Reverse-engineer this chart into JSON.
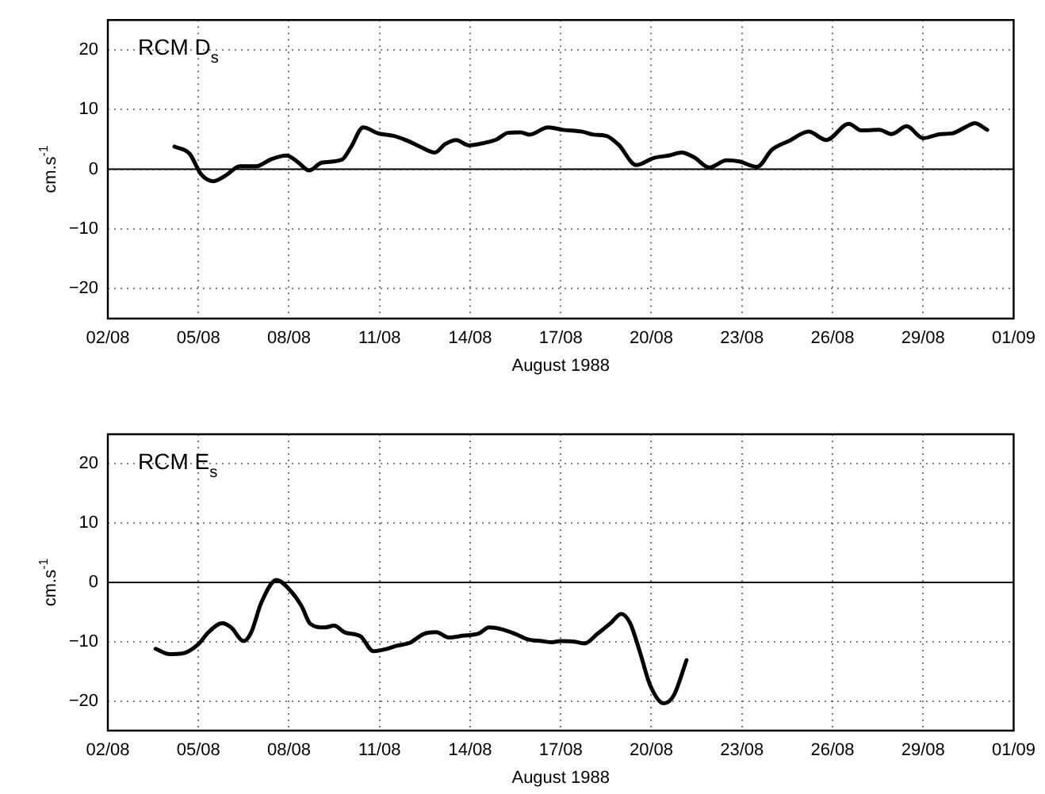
{
  "chart_data": [
    {
      "type": "line",
      "title": "RCM D$_{s}$",
      "xlabel": "August 1988",
      "ylabel": "cm.s$^{-1}$",
      "grid": true,
      "marker": "none",
      "line_style": "solid",
      "xlim": [
        "1988-08-02",
        "1988-09-01"
      ],
      "xticks": [
        {
          "value": "1988-08-02",
          "label": "02/08"
        },
        {
          "value": "1988-08-05",
          "label": "05/08"
        },
        {
          "value": "1988-08-08",
          "label": "08/08"
        },
        {
          "value": "1988-08-11",
          "label": "11/08"
        },
        {
          "value": "1988-08-14",
          "label": "14/08"
        },
        {
          "value": "1988-08-17",
          "label": "17/08"
        },
        {
          "value": "1988-08-20",
          "label": "20/08"
        },
        {
          "value": "1988-08-23",
          "label": "23/08"
        },
        {
          "value": "1988-08-26",
          "label": "26/08"
        },
        {
          "value": "1988-08-29",
          "label": "29/08"
        },
        {
          "value": "1988-09-01",
          "label": "01/09"
        }
      ],
      "ylim": [
        -25,
        25
      ],
      "yticks": [
        -20,
        -10,
        0,
        10,
        20
      ],
      "ref_lines": [
        {
          "axis": "y",
          "value": 0,
          "color": "#000000"
        }
      ],
      "series": [
        {
          "color": "#000000",
          "x": [
            "1988-08-04T05:00",
            "1988-08-04T17:00",
            "1988-08-05T02:00",
            "1988-08-05T12:00",
            "1988-08-05T22:00",
            "1988-08-06T09:00",
            "1988-08-06T22:00",
            "1988-08-07T10:00",
            "1988-08-07T22:00",
            "1988-08-08T07:00",
            "1988-08-08T16:00",
            "1988-08-09T02:00",
            "1988-08-09T18:00",
            "1988-08-10T01:00",
            "1988-08-10T11:00",
            "1988-08-10T23:00",
            "1988-08-11T11:00",
            "1988-08-11T23:00",
            "1988-08-12T08:00",
            "1988-08-12T20:00",
            "1988-08-13T04:00",
            "1988-08-13T13:00",
            "1988-08-13T23:00",
            "1988-08-14T11:00",
            "1988-08-14T21:00",
            "1988-08-15T06:00",
            "1988-08-15T16:00",
            "1988-08-15T23:00",
            "1988-08-16T14:00",
            "1988-08-17T02:00",
            "1988-08-17T17:00",
            "1988-08-18T02:00",
            "1988-08-18T12:00",
            "1988-08-18T22:00",
            "1988-08-19T12:00",
            "1988-08-20T02:00",
            "1988-08-20T14:00",
            "1988-08-21T00:00",
            "1988-08-21T10:00",
            "1988-08-21T22:00",
            "1988-08-22T12:00",
            "1988-08-22T22:00",
            "1988-08-23T12:00",
            "1988-08-24T00:00",
            "1988-08-24T14:00",
            "1988-08-25T05:00",
            "1988-08-25T19:00",
            "1988-08-26T13:00",
            "1988-08-26T23:00",
            "1988-08-27T13:00",
            "1988-08-27T23:00",
            "1988-08-28T11:00",
            "1988-08-29T00:00",
            "1988-08-29T14:00",
            "1988-08-29T23:00",
            "1988-08-30T10:00",
            "1988-08-30T17:00",
            "1988-08-31T03:00"
          ],
          "values": [
            3.8,
            2.6,
            -0.8,
            -2.0,
            -1.0,
            0.5,
            0.5,
            1.7,
            2.3,
            1.2,
            -0.2,
            1.1,
            1.6,
            3.6,
            7.0,
            6.0,
            5.6,
            4.7,
            3.8,
            2.8,
            4.2,
            4.9,
            4.0,
            4.4,
            5.0,
            6.1,
            6.2,
            5.8,
            7.0,
            6.6,
            6.3,
            5.8,
            5.6,
            4.1,
            0.7,
            1.9,
            2.3,
            2.8,
            2.0,
            0.3,
            1.5,
            1.3,
            0.4,
            3.3,
            4.8,
            6.3,
            4.9,
            7.6,
            6.5,
            6.6,
            5.9,
            7.2,
            5.2,
            5.9,
            6.0,
            7.1,
            7.7,
            6.6
          ]
        }
      ]
    },
    {
      "type": "line",
      "title": "RCM E$_{s}$",
      "xlabel": "August 1988",
      "ylabel": "cm.s$^{-1}$",
      "grid": true,
      "marker": "none",
      "line_style": "solid",
      "xlim": [
        "1988-08-02",
        "1988-09-01"
      ],
      "xticks": [
        {
          "value": "1988-08-02",
          "label": "02/08"
        },
        {
          "value": "1988-08-05",
          "label": "05/08"
        },
        {
          "value": "1988-08-08",
          "label": "08/08"
        },
        {
          "value": "1988-08-11",
          "label": "11/08"
        },
        {
          "value": "1988-08-14",
          "label": "14/08"
        },
        {
          "value": "1988-08-17",
          "label": "17/08"
        },
        {
          "value": "1988-08-20",
          "label": "20/08"
        },
        {
          "value": "1988-08-23",
          "label": "23/08"
        },
        {
          "value": "1988-08-26",
          "label": "26/08"
        },
        {
          "value": "1988-08-29",
          "label": "29/08"
        },
        {
          "value": "1988-09-01",
          "label": "01/09"
        }
      ],
      "ylim": [
        -25,
        25
      ],
      "yticks": [
        -20,
        -10,
        0,
        10,
        20
      ],
      "ref_lines": [
        {
          "axis": "y",
          "value": 0,
          "color": "#000000"
        }
      ],
      "series": [
        {
          "color": "#000000",
          "x": [
            "1988-08-03T14:00",
            "1988-08-04T01:00",
            "1988-08-04T11:00",
            "1988-08-05T00:00",
            "1988-08-05T08:00",
            "1988-08-05T19:00",
            "1988-08-06T02:00",
            "1988-08-06T12:00",
            "1988-08-06T18:00",
            "1988-08-07T02:00",
            "1988-08-07T14:00",
            "1988-08-08T02:00",
            "1988-08-08T10:00",
            "1988-08-08T17:00",
            "1988-08-09T04:00",
            "1988-08-09T12:00",
            "1988-08-09T20:00",
            "1988-08-10T09:00",
            "1988-08-10T19:00",
            "1988-08-11T06:00",
            "1988-08-11T13:00",
            "1988-08-12T00:00",
            "1988-08-12T11:00",
            "1988-08-12T21:00",
            "1988-08-13T07:00",
            "1988-08-13T18:00",
            "1988-08-14T07:00",
            "1988-08-14T15:00",
            "1988-08-15T01:00",
            "1988-08-15T12:00",
            "1988-08-15T22:00",
            "1988-08-16T09:00",
            "1988-08-16T17:00",
            "1988-08-17T00:00",
            "1988-08-17T11:00",
            "1988-08-17T19:00",
            "1988-08-18T05:00",
            "1988-08-18T16:00",
            "1988-08-19T00:00",
            "1988-08-19T07:00",
            "1988-08-19T15:00",
            "1988-08-19T23:00",
            "1988-08-20T10:00",
            "1988-08-20T18:00",
            "1988-08-21T04:00"
          ],
          "values": [
            -11.2,
            -12.1,
            -12.0,
            -10.4,
            -8.4,
            -6.9,
            -7.6,
            -9.9,
            -8.4,
            -3.4,
            0.4,
            -1.6,
            -4.0,
            -7.0,
            -7.6,
            -7.3,
            -8.4,
            -9.1,
            -11.6,
            -11.2,
            -10.7,
            -10.2,
            -8.7,
            -8.4,
            -9.3,
            -9.0,
            -8.6,
            -7.6,
            -7.9,
            -8.7,
            -9.6,
            -9.9,
            -10.1,
            -9.9,
            -10.0,
            -10.3,
            -8.7,
            -6.8,
            -5.3,
            -6.8,
            -11.8,
            -17.3,
            -20.4,
            -19.0,
            -13.1
          ]
        }
      ]
    }
  ]
}
